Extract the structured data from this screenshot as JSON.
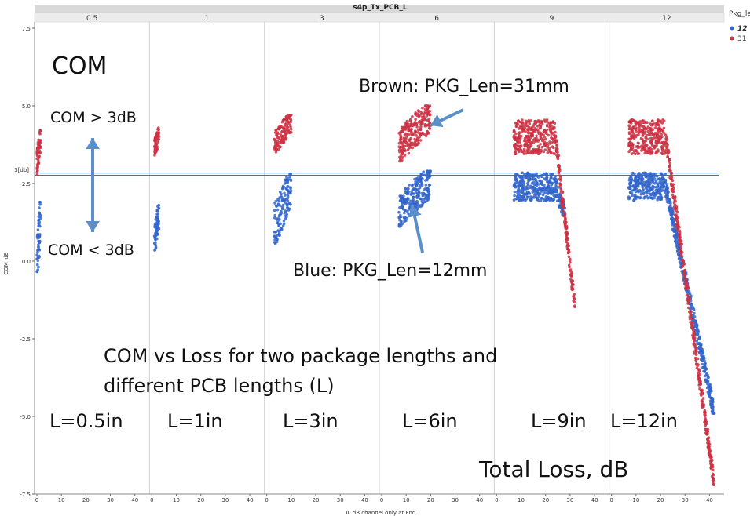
{
  "colors": {
    "blue": "#3366cc",
    "red": "#cc3344",
    "arrow": "#5b8fc9",
    "refline": "#2e5aa8",
    "header_bg": "#d9d9d9",
    "grid": "#dddddd"
  },
  "chart_data": {
    "type": "scatter",
    "title": "s4p_Tx_PCB_L",
    "xlabel": "IL dB channel only at Fnq",
    "ylabel": "COM_dB",
    "panels": [
      "0.5",
      "1",
      "3",
      "6",
      "9",
      "12"
    ],
    "x_ticks": [
      "0",
      "10",
      "20",
      "30",
      "40"
    ],
    "x_last_tick": "40",
    "ylim": [
      -7.5,
      7.5
    ],
    "y_ticks": [
      "7.5",
      "5.0",
      "2.5",
      "0.0",
      "-2.5",
      "-5.0",
      "-7.5"
    ],
    "reference_line": {
      "y": 2.8,
      "label": "3[db]"
    },
    "legend": {
      "title": "Pkg_le",
      "placement": "top-right",
      "items": [
        "12",
        "31"
      ]
    },
    "series": [
      {
        "name": "12",
        "color": "#3366cc",
        "clusters": [
          {
            "panel": "0.5",
            "x": [
              0,
              1.5
            ],
            "y": [
              -1.1,
              1.9
            ]
          },
          {
            "panel": "1",
            "x": [
              1,
              3
            ],
            "y": [
              0.0,
              1.8
            ]
          },
          {
            "panel": "3",
            "x": [
              3,
              10
            ],
            "y": [
              0.2,
              2.8
            ]
          },
          {
            "panel": "6",
            "x": [
              7,
              20
            ],
            "y": [
              0.9,
              2.9
            ]
          },
          {
            "panel": "9",
            "x": [
              7,
              28
            ],
            "y": [
              1.5,
              2.9
            ]
          },
          {
            "panel": "12",
            "x": [
              7,
              42
            ],
            "y": [
              -4.9,
              2.9
            ]
          }
        ]
      },
      {
        "name": "31",
        "color": "#cc3344",
        "clusters": [
          {
            "panel": "0.5",
            "x": [
              0,
              1.5
            ],
            "y": [
              2.6,
              4.2
            ]
          },
          {
            "panel": "1",
            "x": [
              1,
              3
            ],
            "y": [
              3.2,
              4.3
            ]
          },
          {
            "panel": "3",
            "x": [
              3,
              10
            ],
            "y": [
              3.3,
              4.7
            ]
          },
          {
            "panel": "6",
            "x": [
              7,
              20
            ],
            "y": [
              3.0,
              5.0
            ]
          },
          {
            "panel": "9",
            "x": [
              7,
              32
            ],
            "y": [
              -1.5,
              4.9
            ]
          },
          {
            "panel": "12",
            "x": [
              7,
              42
            ],
            "y": [
              -7.2,
              5.0
            ]
          }
        ]
      }
    ]
  },
  "annotations": {
    "com_title": "COM",
    "com_gt": "COM > 3dB",
    "com_lt": "COM < 3dB",
    "brown_note": "Brown: PKG_Len=31mm",
    "blue_note": "Blue: PKG_Len=12mm",
    "caption_line1": "COM vs Loss for two package lengths and",
    "caption_line2": "different PCB lengths (L)",
    "lengths": [
      "L=0.5in",
      "L=1in",
      "L=3in",
      "L=6in",
      "L=9in",
      "L=12in"
    ],
    "total_loss": "Total Loss, dB"
  }
}
